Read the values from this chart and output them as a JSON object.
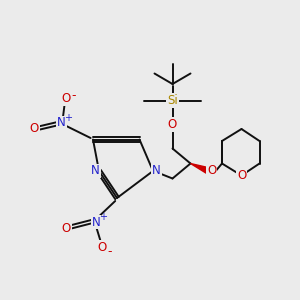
{
  "bg_color": "#ebebeb",
  "bond_color": "#111111",
  "N_color": "#2222cc",
  "O_color": "#cc0000",
  "Si_color": "#aa8800",
  "line_width": 1.4,
  "font_size": 8.5,
  "fig_w": 3.0,
  "fig_h": 3.0,
  "dpi": 100,
  "xlim": [
    0,
    10
  ],
  "ylim": [
    0,
    10
  ]
}
